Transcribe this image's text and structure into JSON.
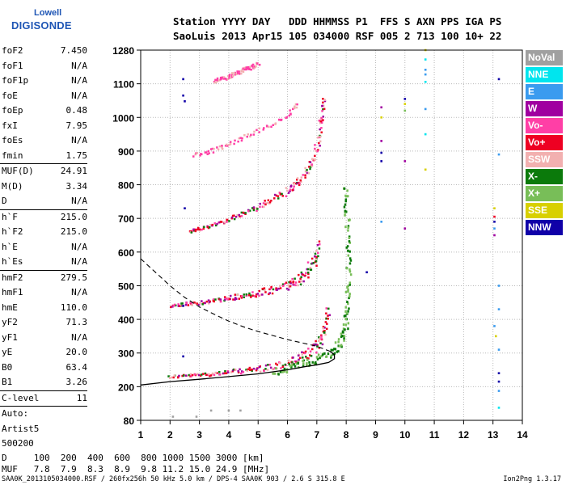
{
  "logo": {
    "line1": "Lowell",
    "line2": "DIGISONDE"
  },
  "header": {
    "line1": "Station YYYY DAY   DDD HHMMSS P1  FFS S AXN PPS IGA PS",
    "line2": "SaoLuis 2013 Apr15 105 034000 RSF 005 2 713 100 10+ 22"
  },
  "params_group1": [
    {
      "k": "foF2",
      "v": "7.450"
    },
    {
      "k": "foF1",
      "v": "N/A"
    },
    {
      "k": "foF1p",
      "v": "N/A"
    },
    {
      "k": "foE",
      "v": "N/A"
    },
    {
      "k": "foEp",
      "v": "0.48"
    },
    {
      "k": "fxI",
      "v": "7.95"
    },
    {
      "k": "foEs",
      "v": "N/A"
    },
    {
      "k": "fmin",
      "v": "1.75"
    }
  ],
  "params_group2": [
    {
      "k": "MUF(D)",
      "v": "24.91"
    },
    {
      "k": "M(D)",
      "v": "3.34"
    },
    {
      "k": "D",
      "v": "N/A"
    }
  ],
  "params_group3": [
    {
      "k": "h`F",
      "v": "215.0"
    },
    {
      "k": "h`F2",
      "v": "215.0"
    },
    {
      "k": "h`E",
      "v": "N/A"
    },
    {
      "k": "h`Es",
      "v": "N/A"
    }
  ],
  "params_group4": [
    {
      "k": "hmF2",
      "v": "279.5"
    },
    {
      "k": "hmF1",
      "v": "N/A"
    },
    {
      "k": "hmE",
      "v": "110.0"
    },
    {
      "k": "yF2",
      "v": "71.3"
    },
    {
      "k": "yF1",
      "v": "N/A"
    },
    {
      "k": "yE",
      "v": "20.0"
    },
    {
      "k": "B0",
      "v": "63.4"
    },
    {
      "k": "B1",
      "v": "3.26"
    }
  ],
  "params_group5": [
    {
      "k": "C-level",
      "v": "11"
    }
  ],
  "autoscale": {
    "line1": "Auto:",
    "line2": "Artist5",
    "line3": "500200"
  },
  "legend": [
    {
      "label": "NoVal",
      "color": "#a0a0a0"
    },
    {
      "label": "NNE",
      "color": "#00e5ee"
    },
    {
      "label": "E",
      "color": "#3a9bef"
    },
    {
      "label": "W",
      "color": "#a000a0"
    },
    {
      "label": "Vo-",
      "color": "#ff3fa6"
    },
    {
      "label": "Vo+",
      "color": "#ee0022"
    },
    {
      "label": "SSW",
      "color": "#f2b0b0"
    },
    {
      "label": "X-",
      "color": "#0b7a0b"
    },
    {
      "label": "X+",
      "color": "#78be58"
    },
    {
      "label": "SSE",
      "color": "#d8d000"
    },
    {
      "label": "NNW",
      "color": "#1000a8"
    }
  ],
  "d_table": {
    "line1": "D     100  200  400  600  800 1000 1500 3000 [km]",
    "line2": "MUF   7.8  7.9  8.3  8.9  9.8 11.2 15.0 24.9 [MHz]"
  },
  "footer": {
    "left": "SAA0K_2013105034000.RSF / 260fx256h 50 kHz 5.0 km / DPS-4 SAA0K 903 / 2.6 S 315.8 E",
    "right": "Ion2Png 1.3.17"
  },
  "chart_data": {
    "type": "scatter",
    "xlabel": "",
    "ylabel": "",
    "xlim": [
      1,
      14
    ],
    "ylim": [
      80,
      1280
    ],
    "x_ticks": [
      1,
      2,
      3,
      4,
      5,
      6,
      7,
      8,
      9,
      10,
      11,
      12,
      13,
      14
    ],
    "y_ticks": [
      80,
      200,
      300,
      400,
      500,
      600,
      700,
      800,
      900,
      1000,
      1100,
      1280
    ],
    "grid": true,
    "legend_placement": "right",
    "traces": [
      {
        "name": "trace-1",
        "points": [
          [
            1.9,
            232
          ],
          [
            2.5,
            235
          ],
          [
            3.0,
            238
          ],
          [
            3.5,
            242
          ],
          [
            4.0,
            246
          ],
          [
            4.5,
            250
          ],
          [
            5.0,
            255
          ],
          [
            5.5,
            262
          ],
          [
            6.0,
            272
          ],
          [
            6.3,
            282
          ],
          [
            6.6,
            295
          ],
          [
            6.9,
            315
          ],
          [
            7.1,
            345
          ],
          [
            7.25,
            380
          ],
          [
            7.35,
            420
          ]
        ]
      },
      {
        "name": "trace-2",
        "points": [
          [
            2.0,
            443
          ],
          [
            2.5,
            448
          ],
          [
            3.0,
            452
          ],
          [
            3.5,
            458
          ],
          [
            4.0,
            465
          ],
          [
            4.5,
            472
          ],
          [
            5.0,
            480
          ],
          [
            5.5,
            490
          ],
          [
            6.0,
            505
          ],
          [
            6.3,
            518
          ],
          [
            6.6,
            540
          ],
          [
            6.9,
            575
          ],
          [
            7.05,
            620
          ]
        ]
      },
      {
        "name": "trace-3",
        "points": [
          [
            2.6,
            663
          ],
          [
            3.0,
            672
          ],
          [
            3.5,
            686
          ],
          [
            4.0,
            700
          ],
          [
            4.5,
            717
          ],
          [
            5.0,
            737
          ],
          [
            5.5,
            760
          ],
          [
            6.0,
            785
          ],
          [
            6.3,
            808
          ],
          [
            6.6,
            840
          ],
          [
            6.85,
            880
          ],
          [
            7.05,
            940
          ],
          [
            7.15,
            1000
          ],
          [
            7.2,
            1045
          ]
        ]
      },
      {
        "name": "trace-4",
        "points": [
          [
            2.8,
            890
          ],
          [
            3.2,
            898
          ],
          [
            3.6,
            910
          ],
          [
            4.0,
            925
          ],
          [
            4.5,
            945
          ],
          [
            5.0,
            962
          ],
          [
            5.5,
            985
          ],
          [
            6.0,
            1010
          ],
          [
            6.3,
            1040
          ]
        ]
      },
      {
        "name": "trace-5",
        "points": [
          [
            3.5,
            1120
          ],
          [
            4.0,
            1145
          ],
          [
            4.5,
            1180
          ],
          [
            5.0,
            1210
          ]
        ]
      }
    ],
    "x_trace_label": "X+",
    "x_trace": [
      [
        5.5,
        245
      ],
      [
        6.0,
        258
      ],
      [
        6.5,
        270
      ],
      [
        7.0,
        285
      ],
      [
        7.5,
        305
      ],
      [
        7.8,
        335
      ],
      [
        7.95,
        380
      ],
      [
        8.0,
        440
      ],
      [
        8.05,
        520
      ],
      [
        8.05,
        620
      ],
      [
        8.0,
        720
      ],
      [
        7.95,
        800
      ]
    ],
    "profile_curve": [
      [
        1.0,
        205
      ],
      [
        2.0,
        215
      ],
      [
        3.0,
        222
      ],
      [
        4.0,
        230
      ],
      [
        5.0,
        238
      ],
      [
        6.0,
        250
      ],
      [
        6.5,
        258
      ],
      [
        7.0,
        265
      ],
      [
        7.4,
        272
      ],
      [
        7.6,
        283
      ],
      [
        7.6,
        295
      ],
      [
        7.45,
        305
      ]
    ],
    "profile_topside": [
      [
        1.0,
        580
      ],
      [
        1.5,
        540
      ],
      [
        2.0,
        500
      ],
      [
        2.5,
        465
      ],
      [
        3.0,
        437
      ],
      [
        3.5,
        415
      ],
      [
        4.0,
        395
      ],
      [
        4.5,
        378
      ],
      [
        5.0,
        364
      ],
      [
        5.5,
        352
      ],
      [
        6.0,
        340
      ],
      [
        6.5,
        330
      ],
      [
        7.0,
        320
      ],
      [
        7.45,
        305
      ]
    ],
    "scatter_misc": [
      {
        "x": 2.45,
        "y": 1125,
        "c": "#1000a8"
      },
      {
        "x": 2.45,
        "y": 1065,
        "c": "#1000a8"
      },
      {
        "x": 2.5,
        "y": 1048,
        "c": "#1000a8"
      },
      {
        "x": 2.5,
        "y": 730,
        "c": "#1000a8"
      },
      {
        "x": 2.45,
        "y": 440,
        "c": "#1000a8"
      },
      {
        "x": 2.45,
        "y": 290,
        "c": "#1000a8"
      },
      {
        "x": 9.2,
        "y": 1030,
        "c": "#a000a0"
      },
      {
        "x": 9.2,
        "y": 1000,
        "c": "#d8d000"
      },
      {
        "x": 9.2,
        "y": 930,
        "c": "#a000a0"
      },
      {
        "x": 9.2,
        "y": 895,
        "c": "#1000a8"
      },
      {
        "x": 9.2,
        "y": 870,
        "c": "#1000a8"
      },
      {
        "x": 9.2,
        "y": 690,
        "c": "#3a9bef"
      },
      {
        "x": 8.7,
        "y": 540,
        "c": "#1000a8"
      },
      {
        "x": 10.0,
        "y": 1055,
        "c": "#1000a8"
      },
      {
        "x": 10.0,
        "y": 1040,
        "c": "#d8d000"
      },
      {
        "x": 10.0,
        "y": 1020,
        "c": "#78be58"
      },
      {
        "x": 10.0,
        "y": 870,
        "c": "#a000a0"
      },
      {
        "x": 10.0,
        "y": 670,
        "c": "#a000a0"
      },
      {
        "x": 10.7,
        "y": 1280,
        "c": "#d8d000"
      },
      {
        "x": 10.7,
        "y": 1230,
        "c": "#00e5ee"
      },
      {
        "x": 10.7,
        "y": 1175,
        "c": "#3a9bef"
      },
      {
        "x": 10.7,
        "y": 1150,
        "c": "#3a9bef"
      },
      {
        "x": 10.7,
        "y": 1110,
        "c": "#00e5ee"
      },
      {
        "x": 10.7,
        "y": 950,
        "c": "#00e5ee"
      },
      {
        "x": 10.7,
        "y": 845,
        "c": "#d8d000"
      },
      {
        "x": 10.7,
        "y": 1025,
        "c": "#3a9bef"
      },
      {
        "x": 13.2,
        "y": 1125,
        "c": "#1000a8"
      },
      {
        "x": 13.2,
        "y": 890,
        "c": "#3a9bef"
      },
      {
        "x": 13.05,
        "y": 730,
        "c": "#d8d000"
      },
      {
        "x": 13.05,
        "y": 705,
        "c": "#ee0022"
      },
      {
        "x": 13.05,
        "y": 690,
        "c": "#1000a8"
      },
      {
        "x": 13.05,
        "y": 670,
        "c": "#3a9bef"
      },
      {
        "x": 13.05,
        "y": 650,
        "c": "#a000a0"
      },
      {
        "x": 13.2,
        "y": 500,
        "c": "#3a9bef"
      },
      {
        "x": 13.2,
        "y": 430,
        "c": "#3a9bef"
      },
      {
        "x": 13.05,
        "y": 380,
        "c": "#3a9bef"
      },
      {
        "x": 13.1,
        "y": 350,
        "c": "#d8d000"
      },
      {
        "x": 13.2,
        "y": 310,
        "c": "#3a9bef"
      },
      {
        "x": 13.2,
        "y": 240,
        "c": "#1000a8"
      },
      {
        "x": 13.2,
        "y": 215,
        "c": "#1000a8"
      },
      {
        "x": 13.2,
        "y": 185,
        "c": "#3a9bef"
      },
      {
        "x": 13.2,
        "y": 125,
        "c": "#00e5ee"
      },
      {
        "x": 2.9,
        "y": 93,
        "c": "#a0a0a0"
      },
      {
        "x": 2.1,
        "y": 93,
        "c": "#a0a0a0"
      },
      {
        "x": 3.4,
        "y": 115,
        "c": "#a0a0a0"
      },
      {
        "x": 4.0,
        "y": 115,
        "c": "#a0a0a0"
      },
      {
        "x": 4.4,
        "y": 115,
        "c": "#a0a0a0"
      }
    ]
  }
}
